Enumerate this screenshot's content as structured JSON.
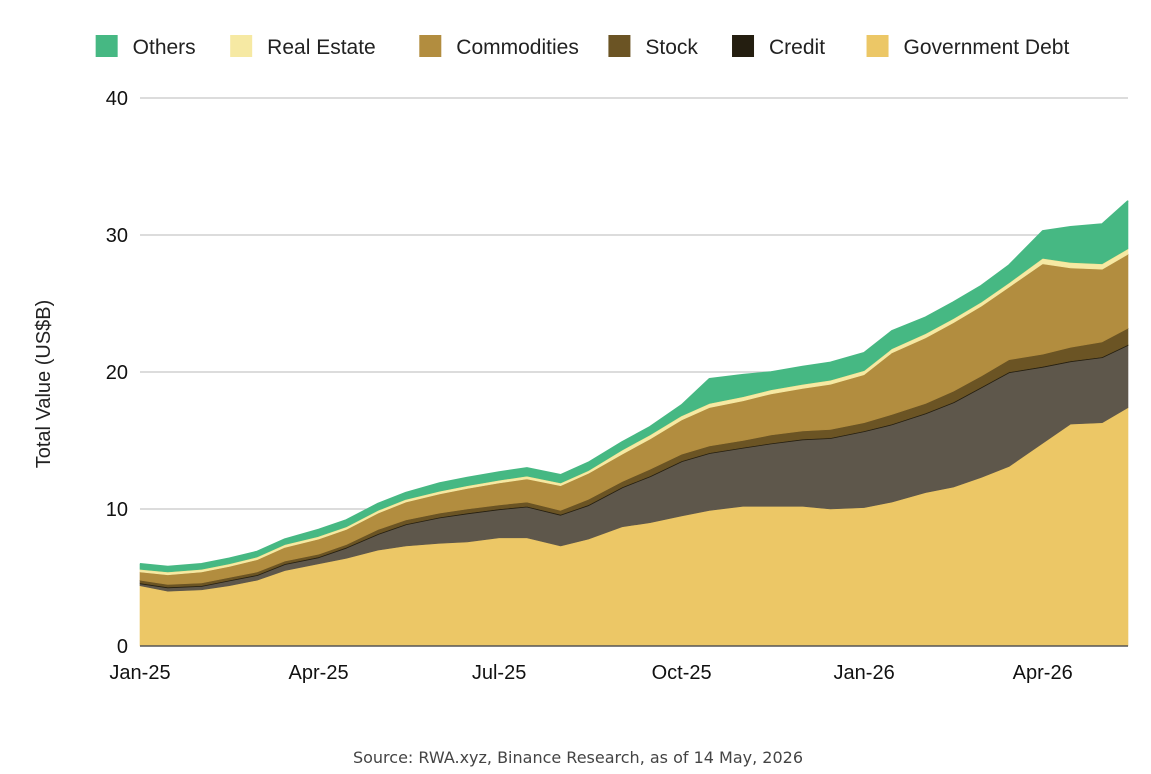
{
  "chart_data": {
    "type": "area",
    "stacked": true,
    "ylabel": "Total Value (US$B)",
    "xlabel": "",
    "ylim": [
      0,
      40
    ],
    "yticks": [
      0,
      10,
      20,
      30,
      40
    ],
    "xticks": [
      "Jan-25",
      "Apr-25",
      "Jul-25",
      "Oct-25",
      "Jan-26",
      "Apr-26"
    ],
    "grid": "horizontal",
    "legend_position": "top",
    "source": "Source: RWA.xyz, Binance Research, as of 14 May, 2026",
    "x": [
      "2025-01-01",
      "2025-01-15",
      "2025-02-01",
      "2025-02-15",
      "2025-03-01",
      "2025-03-15",
      "2025-04-01",
      "2025-04-15",
      "2025-05-01",
      "2025-05-15",
      "2025-06-01",
      "2025-06-15",
      "2025-07-01",
      "2025-07-15",
      "2025-08-01",
      "2025-08-15",
      "2025-09-01",
      "2025-09-15",
      "2025-10-01",
      "2025-10-15",
      "2025-11-01",
      "2025-11-15",
      "2025-12-01",
      "2025-12-15",
      "2026-01-01",
      "2026-01-15",
      "2026-02-01",
      "2026-02-15",
      "2026-03-01",
      "2026-03-15",
      "2026-04-01",
      "2026-04-15",
      "2026-05-01",
      "2026-05-14"
    ],
    "series": [
      {
        "name": "Government Debt",
        "color": "#ecc766",
        "values": [
          4.4,
          4.0,
          4.1,
          4.4,
          4.8,
          5.5,
          6.0,
          6.4,
          7.0,
          7.3,
          7.5,
          7.6,
          7.9,
          7.9,
          7.3,
          7.8,
          8.7,
          9.0,
          9.5,
          9.9,
          10.2,
          10.2,
          10.2,
          10.0,
          10.1,
          10.5,
          11.2,
          11.6,
          12.3,
          13.1,
          14.8,
          16.2,
          16.3,
          17.4
        ]
      },
      {
        "name": "Credit",
        "color": "#5e574b",
        "values": [
          0.2,
          0.3,
          0.3,
          0.4,
          0.4,
          0.5,
          0.5,
          0.8,
          1.2,
          1.6,
          1.9,
          2.1,
          2.1,
          2.3,
          2.3,
          2.5,
          2.9,
          3.4,
          4.0,
          4.2,
          4.3,
          4.6,
          4.9,
          5.2,
          5.6,
          5.7,
          5.8,
          6.2,
          6.6,
          6.9,
          5.6,
          4.6,
          4.8,
          4.6
        ]
      },
      {
        "name": "Stock",
        "color": "#6b5424",
        "values": [
          0.2,
          0.2,
          0.2,
          0.2,
          0.2,
          0.2,
          0.2,
          0.2,
          0.3,
          0.3,
          0.3,
          0.3,
          0.3,
          0.3,
          0.3,
          0.4,
          0.4,
          0.5,
          0.5,
          0.5,
          0.5,
          0.6,
          0.6,
          0.6,
          0.6,
          0.7,
          0.7,
          0.8,
          0.8,
          0.9,
          0.9,
          1.0,
          1.1,
          1.2
        ]
      },
      {
        "name": "Commodities",
        "color": "#b28d3f",
        "values": [
          0.6,
          0.7,
          0.8,
          0.8,
          0.9,
          1.0,
          1.1,
          1.1,
          1.2,
          1.3,
          1.4,
          1.5,
          1.6,
          1.7,
          1.8,
          1.9,
          2.0,
          2.2,
          2.5,
          2.8,
          2.9,
          3.0,
          3.1,
          3.3,
          3.5,
          4.5,
          4.8,
          5.0,
          5.1,
          5.3,
          6.6,
          5.8,
          5.3,
          5.4
        ]
      },
      {
        "name": "Real Estate",
        "color": "#f6e9a3",
        "values": [
          0.2,
          0.2,
          0.2,
          0.2,
          0.2,
          0.2,
          0.2,
          0.2,
          0.2,
          0.2,
          0.2,
          0.2,
          0.2,
          0.2,
          0.2,
          0.2,
          0.3,
          0.3,
          0.3,
          0.3,
          0.3,
          0.3,
          0.3,
          0.3,
          0.3,
          0.3,
          0.3,
          0.3,
          0.3,
          0.3,
          0.4,
          0.4,
          0.4,
          0.4
        ]
      },
      {
        "name": "Others",
        "color": "#46b883",
        "values": [
          0.4,
          0.4,
          0.4,
          0.4,
          0.4,
          0.4,
          0.5,
          0.5,
          0.5,
          0.5,
          0.6,
          0.6,
          0.6,
          0.6,
          0.6,
          0.6,
          0.6,
          0.6,
          0.8,
          1.8,
          1.6,
          1.3,
          1.3,
          1.3,
          1.3,
          1.3,
          1.2,
          1.2,
          1.2,
          1.3,
          2.0,
          2.6,
          2.9,
          3.5
        ]
      }
    ],
    "legend": [
      {
        "name": "Others",
        "color": "#46b883"
      },
      {
        "name": "Real Estate",
        "color": "#f6e9a3"
      },
      {
        "name": "Commodities",
        "color": "#b28d3f"
      },
      {
        "name": "Stock",
        "color": "#6b5424"
      },
      {
        "name": "Credit",
        "color": "#241e10"
      },
      {
        "name": "Government Debt",
        "color": "#ecc766"
      }
    ]
  }
}
